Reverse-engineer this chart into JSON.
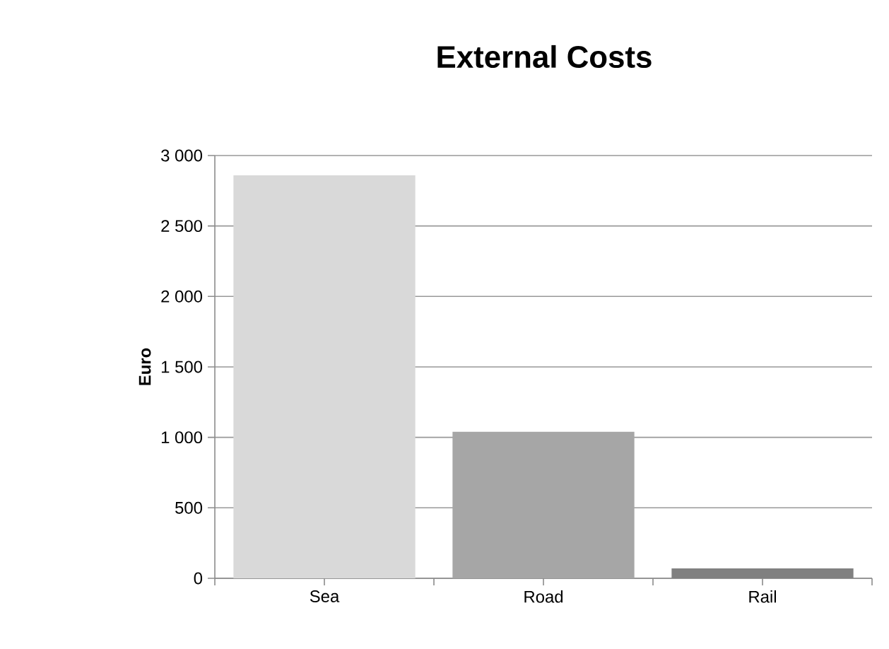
{
  "chart_data": {
    "type": "bar",
    "title": "External Costs",
    "ylabel": "Euro",
    "categories": [
      "Sea",
      "Road",
      "Rail"
    ],
    "values": [
      2860,
      1040,
      70
    ],
    "colors": [
      "#d9d9d9",
      "#a6a6a6",
      "#808080"
    ],
    "ylim": [
      0,
      3000
    ],
    "yticks": [
      0,
      500,
      {
        "value": 1000,
        "label": "1 000"
      },
      {
        "value": 1500,
        "label": "1 500"
      },
      {
        "value": 2000,
        "label": "2 000"
      },
      {
        "value": 2500,
        "label": "2 500"
      },
      {
        "value": 3000,
        "label": "3 000"
      }
    ],
    "grid": "y"
  }
}
